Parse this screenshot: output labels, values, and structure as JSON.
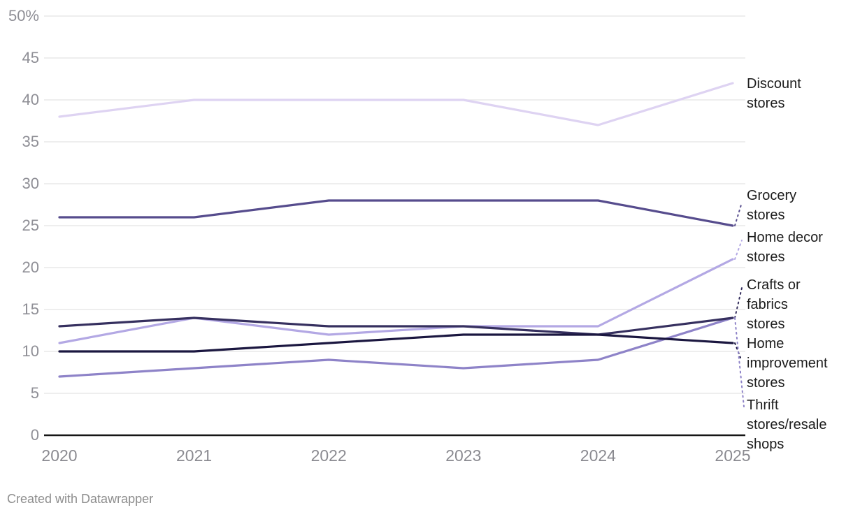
{
  "chart": {
    "attribution": "Created with Datawrapper"
  },
  "chart_data": {
    "type": "line",
    "title": "",
    "xlabel": "",
    "ylabel": "",
    "unit": "%",
    "categories": [
      "2020",
      "2021",
      "2022",
      "2023",
      "2024",
      "2025"
    ],
    "ylim": [
      0,
      50
    ],
    "y_ticks": [
      0,
      5,
      10,
      15,
      20,
      25,
      30,
      35,
      40,
      45,
      50
    ],
    "y_tick_labels": [
      "0",
      "5",
      "10",
      "15",
      "20",
      "25",
      "30",
      "35",
      "40",
      "45",
      "50%"
    ],
    "grid": "horizontal",
    "legend_position": "right-direct-labels",
    "colors": {
      "grid": "#e9e9e9",
      "baseline": "#161616",
      "axis_text": "#8f8f96",
      "label_text": "#1c1c1c"
    },
    "series": [
      {
        "name": "Discount stores",
        "label_lines": [
          "Discount",
          "stores"
        ],
        "values": [
          38,
          40,
          40,
          40,
          37,
          42
        ],
        "color": "#ded3f2"
      },
      {
        "name": "Grocery stores",
        "label_lines": [
          "Grocery",
          "stores"
        ],
        "values": [
          26,
          26,
          28,
          28,
          28,
          25
        ],
        "color": "#564c8d"
      },
      {
        "name": "Home decor stores",
        "label_lines": [
          "Home decor",
          "stores"
        ],
        "values": [
          11,
          14,
          12,
          13,
          13,
          21
        ],
        "color": "#b3a8e4"
      },
      {
        "name": "Crafts or fabrics stores",
        "label_lines": [
          "Crafts or",
          "fabrics",
          "stores"
        ],
        "values": [
          13,
          14,
          13,
          13,
          12,
          14
        ],
        "color": "#36305f"
      },
      {
        "name": "Home improvement stores",
        "label_lines": [
          "Home",
          "improvement",
          "stores"
        ],
        "values": [
          10,
          10,
          11,
          12,
          12,
          11
        ],
        "color": "#1b1740"
      },
      {
        "name": "Thrift stores/resale shops",
        "label_lines": [
          "Thrift",
          "stores/resale",
          "shops"
        ],
        "values": [
          7,
          8,
          9,
          8,
          9,
          14
        ],
        "color": "#8e83c8"
      }
    ]
  }
}
